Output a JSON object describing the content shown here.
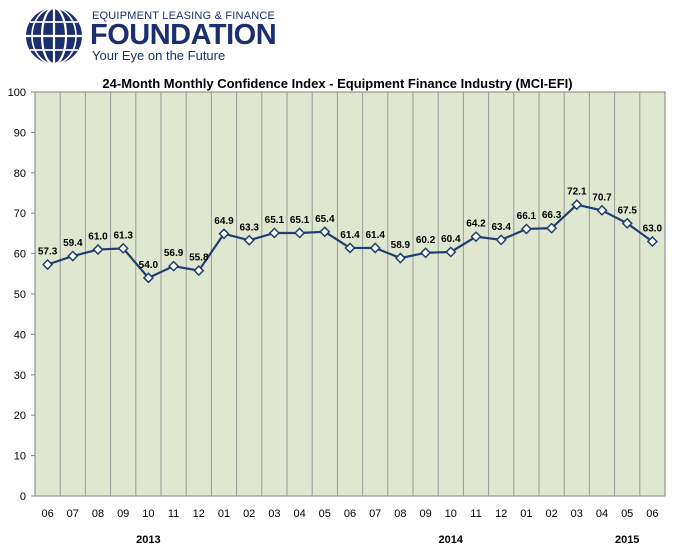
{
  "logo": {
    "line1": "EQUIPMENT LEASING & FINANCE",
    "line2": "FOUNDATION",
    "line3": "Your Eye on the Future",
    "color": "#1b2f6e",
    "icon": "globe-icon"
  },
  "colors": {
    "plot_background": "#dfe8cf",
    "line": "#1f3f73",
    "marker_fill": "#ffffff"
  },
  "chart_data": {
    "type": "line",
    "title": "24-Month Monthly Confidence Index - Equipment Finance Industry (MCI-EFI)",
    "xlabel": "",
    "ylabel": "",
    "ylim": [
      0,
      100
    ],
    "yticks": [
      0,
      10,
      20,
      30,
      40,
      50,
      60,
      70,
      80,
      90,
      100
    ],
    "grid": "vertical",
    "legend": "none",
    "categories": [
      "06",
      "07",
      "08",
      "09",
      "10",
      "11",
      "12",
      "01",
      "02",
      "03",
      "04",
      "05",
      "06",
      "07",
      "08",
      "09",
      "10",
      "11",
      "12",
      "01",
      "02",
      "03",
      "04",
      "05",
      "06"
    ],
    "values": [
      57.3,
      59.4,
      61.0,
      61.3,
      54.0,
      56.9,
      55.8,
      64.9,
      63.3,
      65.1,
      65.1,
      65.4,
      61.4,
      61.4,
      58.9,
      60.2,
      60.4,
      64.2,
      63.4,
      66.1,
      66.3,
      72.1,
      70.7,
      67.5,
      63.0
    ],
    "labels": [
      "57.3",
      "59.4",
      "61.0",
      "61.3",
      "54.0",
      "56.9",
      "55.8",
      "64.9",
      "63.3",
      "65.1",
      "65.1",
      "65.4",
      "61.4",
      "61.4",
      "58.9",
      "60.2",
      "60.4",
      "64.2",
      "63.4",
      "66.1",
      "66.3",
      "72.1",
      "70.7",
      "67.5",
      "63.0"
    ],
    "years": [
      {
        "label": "2013",
        "category_index": 4
      },
      {
        "label": "2014",
        "category_index": 16
      },
      {
        "label": "2015",
        "category_index": 23
      }
    ]
  }
}
